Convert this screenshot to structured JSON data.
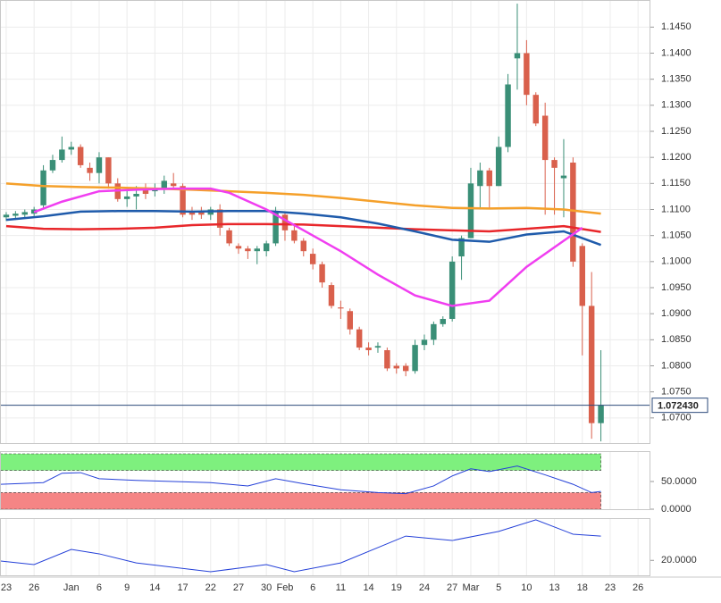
{
  "chart_data": [
    {
      "type": "candlestick",
      "xlim": [
        -0.67,
        69.33
      ],
      "xticks": [
        {
          "value": 0,
          "label": "23"
        },
        {
          "value": 3,
          "label": "26"
        },
        {
          "value": 7,
          "label": "Jan"
        },
        {
          "value": 10,
          "label": "6"
        },
        {
          "value": 13,
          "label": "9"
        },
        {
          "value": 16,
          "label": "14"
        },
        {
          "value": 19,
          "label": "17"
        },
        {
          "value": 22,
          "label": "22"
        },
        {
          "value": 25,
          "label": "27"
        },
        {
          "value": 28,
          "label": "30"
        },
        {
          "value": 30,
          "label": "Feb"
        },
        {
          "value": 33,
          "label": "6"
        },
        {
          "value": 36,
          "label": "11"
        },
        {
          "value": 39,
          "label": "14"
        },
        {
          "value": 42,
          "label": "19"
        },
        {
          "value": 45,
          "label": "24"
        },
        {
          "value": 48,
          "label": "27"
        },
        {
          "value": 50,
          "label": "Mar"
        },
        {
          "value": 53,
          "label": "5"
        },
        {
          "value": 56,
          "label": "10"
        },
        {
          "value": 59,
          "label": "13"
        },
        {
          "value": 62,
          "label": "18"
        },
        {
          "value": 65,
          "label": "23"
        },
        {
          "value": 68,
          "label": "26"
        }
      ],
      "ylim": [
        1.065,
        1.1502
      ],
      "yticks": [
        {
          "value": 1.07,
          "label": "1.0700"
        },
        {
          "value": 1.075,
          "label": "1.0750"
        },
        {
          "value": 1.08,
          "label": "1.0800"
        },
        {
          "value": 1.085,
          "label": "1.0850"
        },
        {
          "value": 1.09,
          "label": "1.0900"
        },
        {
          "value": 1.095,
          "label": "1.0950"
        },
        {
          "value": 1.1,
          "label": "1.1000"
        },
        {
          "value": 1.105,
          "label": "1.1050"
        },
        {
          "value": 1.11,
          "label": "1.1100"
        },
        {
          "value": 1.115,
          "label": "1.1150"
        },
        {
          "value": 1.12,
          "label": "1.1200"
        },
        {
          "value": 1.125,
          "label": "1.1250"
        },
        {
          "value": 1.13,
          "label": "1.1300"
        },
        {
          "value": 1.135,
          "label": "1.1350"
        },
        {
          "value": 1.14,
          "label": "1.1400"
        },
        {
          "value": 1.145,
          "label": "1.1450"
        }
      ],
      "grid": true,
      "up_color": "#3a8f77",
      "down_color": "#d9604c",
      "open": [
        1.1085,
        1.1088,
        1.109,
        1.1092,
        1.1108,
        1.1175,
        1.1195,
        1.1215,
        1.122,
        1.118,
        1.117,
        1.12,
        1.115,
        1.112,
        1.1125,
        1.114,
        1.1135,
        1.114,
        1.115,
        1.1145,
        1.1095,
        1.1095,
        1.109,
        1.11,
        1.106,
        1.103,
        1.1025,
        1.102,
        1.102,
        1.1035,
        1.109,
        1.106,
        1.104,
        1.1015,
        1.0995,
        1.0955,
        1.0912,
        1.0905,
        1.087,
        1.0835,
        1.0835,
        1.083,
        1.08,
        1.08,
        1.079,
        1.084,
        1.085,
        1.088,
        1.089,
        1.101,
        1.1045,
        1.1145,
        1.1175,
        1.1145,
        1.122,
        1.139,
        1.14,
        1.132,
        1.128,
        1.1195,
        1.116,
        1.119,
        1.103,
        1.0915,
        1.069
      ],
      "high": [
        1.1095,
        1.1097,
        1.11,
        1.1105,
        1.1185,
        1.1205,
        1.124,
        1.123,
        1.1225,
        1.119,
        1.121,
        1.12,
        1.116,
        1.114,
        1.1145,
        1.115,
        1.115,
        1.1165,
        1.117,
        1.115,
        1.1105,
        1.1105,
        1.1105,
        1.111,
        1.1065,
        1.1035,
        1.103,
        1.103,
        1.104,
        1.1105,
        1.1095,
        1.107,
        1.1045,
        1.1025,
        1.1,
        1.096,
        1.0925,
        1.091,
        1.0875,
        1.0845,
        1.0845,
        1.0835,
        1.0805,
        1.0805,
        1.085,
        1.086,
        1.0885,
        1.0895,
        1.101,
        1.105,
        1.118,
        1.119,
        1.118,
        1.124,
        1.136,
        1.1495,
        1.1425,
        1.1325,
        1.1305,
        1.12,
        1.1235,
        1.12,
        1.1035,
        1.098,
        1.083
      ],
      "low": [
        1.1078,
        1.108,
        1.1083,
        1.1085,
        1.11,
        1.117,
        1.119,
        1.1205,
        1.118,
        1.1155,
        1.115,
        1.114,
        1.1115,
        1.1105,
        1.11,
        1.112,
        1.1125,
        1.113,
        1.114,
        1.1085,
        1.108,
        1.1082,
        1.108,
        1.105,
        1.103,
        1.1015,
        1.1005,
        1.0995,
        1.101,
        1.103,
        1.104,
        1.1035,
        1.101,
        1.0985,
        1.095,
        1.091,
        1.089,
        1.086,
        1.083,
        1.082,
        1.0825,
        1.079,
        1.0785,
        1.078,
        1.0785,
        1.083,
        1.084,
        1.0875,
        1.0885,
        1.0965,
        1.1045,
        1.11,
        1.11,
        1.1145,
        1.121,
        1.133,
        1.13,
        1.126,
        1.109,
        1.109,
        1.1085,
        1.099,
        1.082,
        1.066,
        1.0655
      ],
      "close": [
        1.109,
        1.1092,
        1.1095,
        1.11,
        1.1175,
        1.1195,
        1.1215,
        1.122,
        1.1185,
        1.117,
        1.12,
        1.115,
        1.112,
        1.1125,
        1.113,
        1.113,
        1.114,
        1.1155,
        1.1145,
        1.109,
        1.109,
        1.109,
        1.11,
        1.1065,
        1.1035,
        1.1025,
        1.102,
        1.1025,
        1.1035,
        1.1095,
        1.106,
        1.104,
        1.102,
        1.0995,
        1.096,
        1.0915,
        1.091,
        1.087,
        1.0835,
        1.083,
        1.0838,
        1.0795,
        1.0795,
        1.079,
        1.084,
        1.085,
        1.088,
        1.089,
        1.1,
        1.1045,
        1.115,
        1.1175,
        1.1145,
        1.122,
        1.134,
        1.14,
        1.132,
        1.1265,
        1.1195,
        1.118,
        1.1165,
        1.1,
        1.0915,
        1.069,
        1.07243
      ],
      "last_price": {
        "value": 1.07243,
        "label": "1.072430"
      },
      "last_price_color": "#2b4a7a",
      "series": [
        {
          "color": "#f5a02a",
          "x": [
            0,
            4,
            8,
            12,
            16,
            20,
            24,
            28,
            32,
            36,
            40,
            44,
            48,
            52,
            56,
            60,
            64
          ],
          "values": [
            1.115,
            1.1145,
            1.1143,
            1.1142,
            1.114,
            1.1138,
            1.1135,
            1.1132,
            1.1128,
            1.1122,
            1.1115,
            1.1108,
            1.1103,
            1.1102,
            1.1103,
            1.11,
            1.1092
          ]
        },
        {
          "color": "#e8262a",
          "x": [
            0,
            4,
            8,
            12,
            16,
            20,
            24,
            28,
            32,
            36,
            40,
            44,
            48,
            52,
            56,
            60,
            64
          ],
          "values": [
            1.1068,
            1.1063,
            1.1062,
            1.1063,
            1.1065,
            1.107,
            1.1072,
            1.1072,
            1.1071,
            1.1068,
            1.1065,
            1.1062,
            1.106,
            1.1058,
            1.1063,
            1.1068,
            1.1057
          ]
        },
        {
          "color": "#1f5bab",
          "x": [
            0,
            4,
            8,
            12,
            16,
            20,
            24,
            28,
            32,
            36,
            40,
            44,
            48,
            52,
            56,
            60,
            64
          ],
          "values": [
            1.108,
            1.1087,
            1.1096,
            1.1097,
            1.1097,
            1.1096,
            1.1097,
            1.1097,
            1.1092,
            1.1085,
            1.1073,
            1.1058,
            1.1042,
            1.1038,
            1.1052,
            1.1058,
            1.1032
          ]
        },
        {
          "color": "#f03ef0",
          "x": [
            3,
            6,
            10,
            14,
            18,
            22,
            24,
            28,
            32,
            36,
            40,
            44,
            48,
            52,
            56,
            60,
            62
          ],
          "values": [
            1.1095,
            1.1115,
            1.1135,
            1.1138,
            1.114,
            1.114,
            1.1132,
            1.11,
            1.106,
            1.102,
            1.0975,
            1.0935,
            1.0915,
            1.0925,
            1.099,
            1.104,
            1.1065
          ]
        }
      ]
    },
    {
      "type": "line",
      "ylim": [
        0,
        100
      ],
      "yticks": [
        {
          "value": 0,
          "label": "0.0000"
        },
        {
          "value": 50,
          "label": "50.0000"
        }
      ],
      "zones": [
        {
          "from": 70,
          "to": 100,
          "color": "#7ef07e"
        },
        {
          "from": 0,
          "to": 30,
          "color": "#f58585"
        }
      ],
      "series": [
        {
          "color": "#2440d8",
          "x": [
            -0.6,
            4,
            6,
            8,
            10,
            14,
            18,
            22,
            26,
            29,
            32,
            36,
            40,
            43,
            46,
            48,
            50,
            52,
            55,
            58,
            61,
            63,
            64
          ],
          "values": [
            45,
            48,
            65,
            66,
            55,
            52,
            50,
            48,
            42,
            55,
            46,
            35,
            30,
            28,
            42,
            60,
            73,
            68,
            78,
            62,
            45,
            30,
            32
          ]
        }
      ]
    },
    {
      "type": "line",
      "ylim": [
        12.5,
        40
      ],
      "yticks": [
        {
          "value": 20,
          "label": "20.0000"
        }
      ],
      "series": [
        {
          "color": "#2440d8",
          "x": [
            -0.6,
            3,
            7,
            10,
            14,
            22,
            28,
            31,
            36,
            43,
            48,
            53,
            57,
            61,
            64
          ],
          "values": [
            19.7,
            18.0,
            25.2,
            23.1,
            18.8,
            14.6,
            18.0,
            14.6,
            18.8,
            31.5,
            29.4,
            33.7,
            39.2,
            32.4,
            31.5
          ]
        }
      ]
    }
  ]
}
